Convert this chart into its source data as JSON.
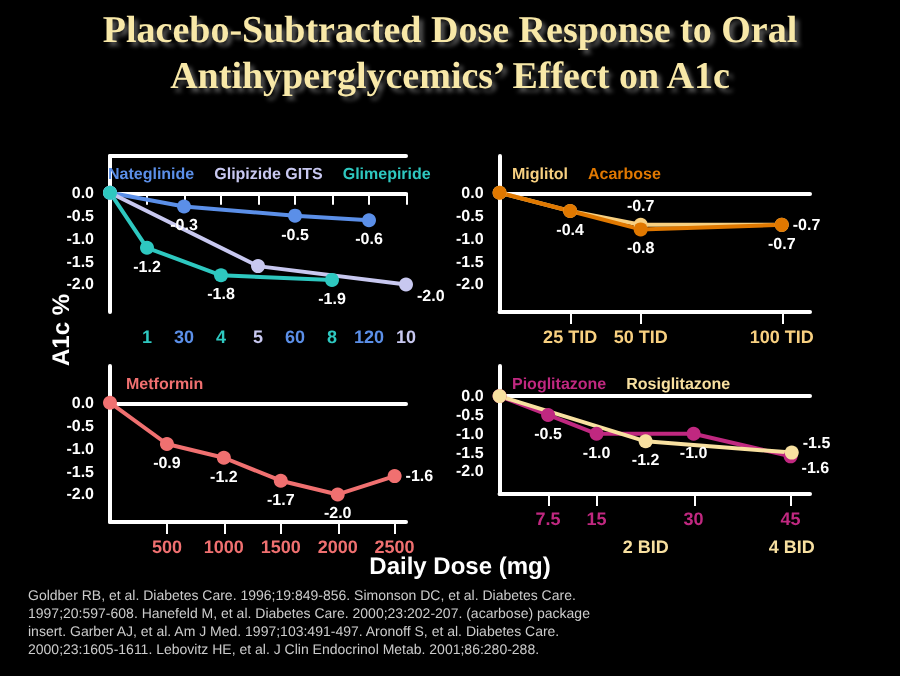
{
  "chart_data": [
    {
      "type": "line",
      "title": "Placebo-Subtracted Dose Response to Oral Antihyperglycemics’ Effect on A1c",
      "ylabel": "A1c %",
      "xlabel": "Daily Dose (mg)",
      "annotations": [
        "Goldber RB, et al. Diabetes Care. 1996;19:849-856. Simonson DC, et al. Diabetes Care. 1997;20:597-608. Hanefeld M, et al. Diabetes Care. 2000;23:202-207. (acarbose) package insert. Garber AJ, et al. Am J Med. 1997;103:491-497. Aronoff S, et al. Diabetes Care. 2000;23:1605-1611. Lebovitz HE, et al. J Clin Endocrinol Metab. 2001;86:280-288."
      ],
      "categories": [
        null,
        "1",
        "30",
        "4",
        "5",
        "60",
        "8",
        "120",
        "10"
      ],
      "series": [
        {
          "name": "Nateglinide",
          "color": "#5b8fe8",
          "values": [
            0,
            null,
            -0.3,
            null,
            null,
            -0.5,
            null,
            -0.6,
            null
          ],
          "value_labels": [
            null,
            null,
            "-0.3",
            null,
            null,
            "-0.5",
            null,
            "-0.6",
            null
          ]
        },
        {
          "name": "Glipizide GITS",
          "color": "#c8c8f0",
          "values": [
            0,
            null,
            null,
            null,
            -1.6,
            null,
            null,
            null,
            -2.0
          ],
          "value_labels": [
            null,
            null,
            null,
            null,
            null,
            null,
            null,
            null,
            "-2.0"
          ]
        },
        {
          "name": "Glimepiride",
          "color": "#2ec8c0",
          "values": [
            0,
            -1.2,
            null,
            -1.8,
            null,
            null,
            -1.9,
            null,
            null
          ],
          "value_labels": [
            null,
            "-1.2",
            null,
            "-1.8",
            null,
            null,
            "-1.9",
            null,
            null
          ]
        }
      ],
      "ylim": [
        -2.6,
        0.8
      ],
      "yticks": [
        {
          "value": 0,
          "label": "0.0"
        },
        {
          "value": -0.5,
          "label": "-0.5"
        },
        {
          "value": -1,
          "label": "-1.0"
        },
        {
          "value": -1.5,
          "label": "-1.5"
        },
        {
          "value": -2,
          "label": "-2.0"
        }
      ],
      "legend": "top",
      "marker": "circle",
      "line_style": "solid"
    },
    {
      "type": "line",
      "series": [
        {
          "name": "Miglitol",
          "color": "#f8d080",
          "x": [
            0,
            25,
            50,
            100
          ],
          "values": [
            0,
            -0.4,
            -0.7,
            -0.7
          ],
          "value_labels": [
            null,
            "-0.4",
            "-0.7",
            "-0.7"
          ]
        },
        {
          "name": "Acarbose",
          "color": "#e07800",
          "x": [
            0,
            25,
            50,
            100
          ],
          "values": [
            0,
            -0.4,
            -0.8,
            -0.7
          ],
          "value_labels": [
            null,
            null,
            "-0.8",
            "-0.7"
          ]
        }
      ],
      "xlim": [
        0,
        110
      ],
      "xticks": [
        {
          "value": 25,
          "label": "25 TID"
        },
        {
          "value": 50,
          "label": "50 TID"
        },
        {
          "value": 100,
          "label": "100 TID"
        }
      ],
      "ylim": [
        -2.6,
        0.8
      ],
      "yticks": [
        {
          "value": 0,
          "label": "0.0"
        },
        {
          "value": -0.5,
          "label": "-0.5"
        },
        {
          "value": -1,
          "label": "-1.0"
        },
        {
          "value": -1.5,
          "label": "-1.5"
        },
        {
          "value": -2,
          "label": "-2.0"
        }
      ],
      "legend": "top left",
      "marker": "circle",
      "line_style": "solid"
    },
    {
      "type": "line",
      "series": [
        {
          "name": "Metformin",
          "color": "#f07070",
          "x": [
            0,
            500,
            1000,
            1500,
            2000,
            2500
          ],
          "values": [
            0,
            -0.9,
            -1.2,
            -1.7,
            -2.0,
            -1.6
          ],
          "value_labels": [
            null,
            "-0.9",
            "-1.2",
            "-1.7",
            "-2.0",
            "-1.6"
          ]
        }
      ],
      "xlim": [
        0,
        2600
      ],
      "xticks": [
        500,
        1000,
        1500,
        2000,
        2500
      ],
      "ylim": [
        -2.6,
        0.8
      ],
      "yticks": [
        {
          "value": 0,
          "label": "0.0"
        },
        {
          "value": -0.5,
          "label": "-0.5"
        },
        {
          "value": -1,
          "label": "-1.0"
        },
        {
          "value": -1.5,
          "label": "-1.5"
        },
        {
          "value": -2,
          "label": "-2.0"
        }
      ],
      "legend": "top left",
      "marker": "circle",
      "line_style": "solid"
    },
    {
      "type": "line",
      "series": [
        {
          "name": "Pioglitazone",
          "color": "#c02880",
          "x": [
            0,
            7.5,
            15,
            30,
            45
          ],
          "values": [
            0,
            -0.5,
            -1.0,
            -1.0,
            -1.6
          ],
          "value_labels": [
            null,
            "-0.5",
            "-1.0",
            "-1.0",
            "-1.6"
          ]
        },
        {
          "name": "Rosiglitazone",
          "color": "#f8e0a0",
          "axis": "x2",
          "x": [
            0,
            2,
            4
          ],
          "values": [
            0,
            -1.2,
            -1.5
          ],
          "value_labels": [
            null,
            "-1.2",
            "-1.5"
          ]
        }
      ],
      "xlim": [
        0,
        48
      ],
      "xticks": [
        7.5,
        15,
        30,
        45
      ],
      "x2lim": [
        0,
        4.25
      ],
      "x2ticks": [
        {
          "value": 2,
          "label": "2 BID"
        },
        {
          "value": 4,
          "label": "4 BID"
        }
      ],
      "ylim": [
        -2.6,
        0.8
      ],
      "yticks": [
        {
          "value": 0,
          "label": "0.0"
        },
        {
          "value": -0.5,
          "label": "-0.5"
        },
        {
          "value": -1,
          "label": "-1.0"
        },
        {
          "value": -1.5,
          "label": "-1.5"
        },
        {
          "value": -2,
          "label": "-2.0"
        }
      ],
      "legend": "top left",
      "marker": "circle",
      "line_style": "solid"
    }
  ]
}
